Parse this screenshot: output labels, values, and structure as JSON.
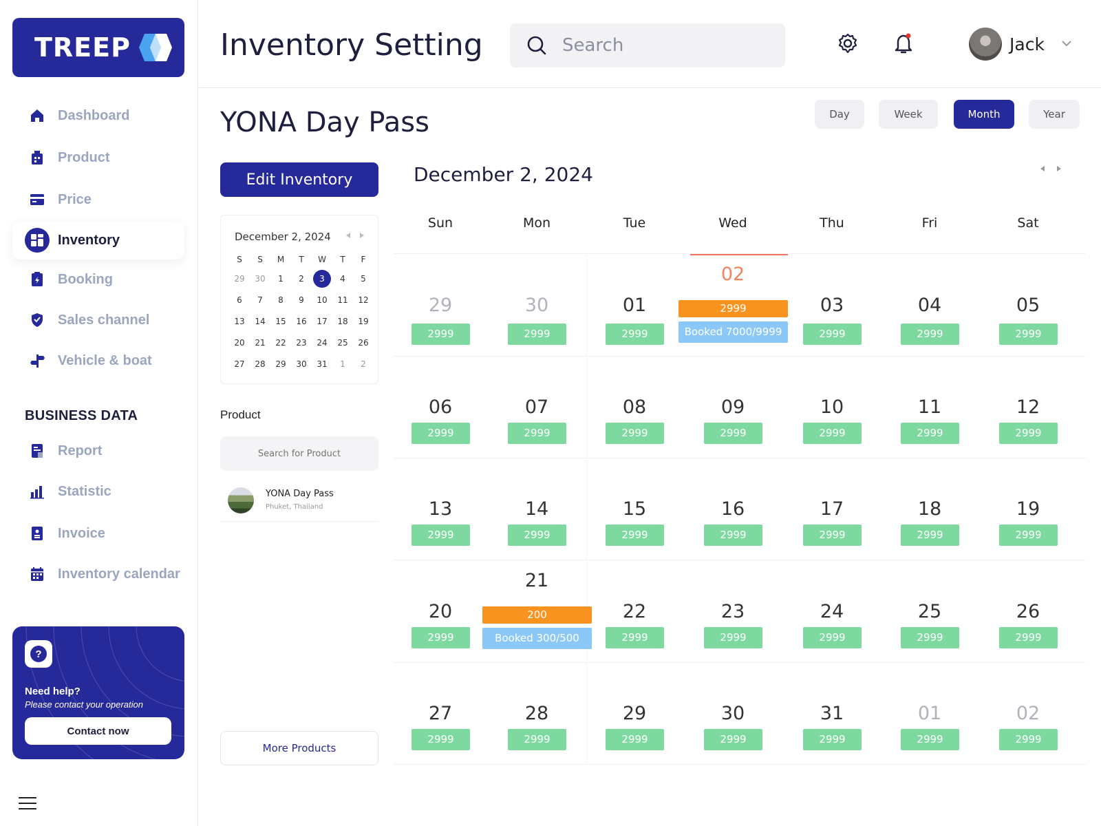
{
  "app": {
    "logo_text": "TREEP",
    "page_title": "Inventory Setting"
  },
  "search": {
    "placeholder": "Search"
  },
  "user": {
    "name": "Jack"
  },
  "sidebar": {
    "items": [
      {
        "label": "Dashboard",
        "icon": "home-icon"
      },
      {
        "label": "Product",
        "icon": "product-icon"
      },
      {
        "label": "Price",
        "icon": "card-icon"
      },
      {
        "label": "Inventory",
        "icon": "grid-icon",
        "active": true
      },
      {
        "label": "Booking",
        "icon": "clipboard-icon"
      },
      {
        "label": "Sales channel",
        "icon": "shield-icon"
      },
      {
        "label": "Vehicle & boat",
        "icon": "signpost-icon"
      }
    ],
    "section_title": "BUSINESS DATA",
    "business_items": [
      {
        "label": "Report",
        "icon": "report-icon"
      },
      {
        "label": "Statistic",
        "icon": "bar-chart-icon"
      },
      {
        "label": "Invoice",
        "icon": "invoice-icon"
      },
      {
        "label": "Inventory calendar",
        "icon": "calendar-icon"
      }
    ],
    "help": {
      "title": "Need help?",
      "subtitle": "Please contact your operation",
      "button": "Contact now"
    }
  },
  "product_title": "YONA Day Pass",
  "views": {
    "day": "Day",
    "week": "Week",
    "month": "Month",
    "year": "Year",
    "active": "Month"
  },
  "edit_button": "Edit Inventory",
  "mini_calendar": {
    "title": "December 2, 2024",
    "weekdays": [
      "S",
      "S",
      "M",
      "T",
      "W",
      "T",
      "F"
    ],
    "weeks": [
      [
        "29",
        "30",
        "1",
        "2",
        "3",
        "4",
        "5"
      ],
      [
        "6",
        "7",
        "8",
        "9",
        "10",
        "11",
        "12"
      ],
      [
        "13",
        "14",
        "15",
        "16",
        "17",
        "18",
        "19"
      ],
      [
        "20",
        "21",
        "22",
        "23",
        "24",
        "25",
        "26"
      ],
      [
        "27",
        "28",
        "29",
        "30",
        "31",
        "1",
        "2"
      ]
    ],
    "selected": "3"
  },
  "product_panel": {
    "label": "Product",
    "search_placeholder": "Search for Product",
    "items": [
      {
        "name": "YONA Day Pass",
        "location": "Phuket, Thailand"
      }
    ],
    "more_button": "More Products"
  },
  "calendar": {
    "title": "December 2, 2024",
    "weekdays": [
      "Sun",
      "Mon",
      "Tue",
      "Wed",
      "Thu",
      "Fri",
      "Sat"
    ],
    "weeks": [
      [
        {
          "day": "29",
          "muted": true,
          "value": "2999"
        },
        {
          "day": "30",
          "muted": true,
          "value": "2999"
        },
        {
          "day": "01",
          "value": "2999"
        },
        {
          "day": "02",
          "today": true,
          "special": "2999",
          "booked": "Booked 7000/9999"
        },
        {
          "day": "03",
          "value": "2999"
        },
        {
          "day": "04",
          "value": "2999"
        },
        {
          "day": "05",
          "value": "2999"
        }
      ],
      [
        {
          "day": "06",
          "value": "2999"
        },
        {
          "day": "07",
          "value": "2999"
        },
        {
          "day": "08",
          "value": "2999"
        },
        {
          "day": "09",
          "value": "2999"
        },
        {
          "day": "10",
          "value": "2999"
        },
        {
          "day": "11",
          "value": "2999"
        },
        {
          "day": "12",
          "value": "2999"
        }
      ],
      [
        {
          "day": "13",
          "value": "2999"
        },
        {
          "day": "14",
          "value": "2999"
        },
        {
          "day": "15",
          "value": "2999"
        },
        {
          "day": "16",
          "value": "2999"
        },
        {
          "day": "17",
          "value": "2999"
        },
        {
          "day": "18",
          "value": "2999"
        },
        {
          "day": "19",
          "value": "2999"
        }
      ],
      [
        {
          "day": "20",
          "value": "2999"
        },
        {
          "day": "21",
          "special": "200",
          "booked": "Booked 300/500"
        },
        {
          "day": "22",
          "value": "2999"
        },
        {
          "day": "23",
          "value": "2999"
        },
        {
          "day": "24",
          "value": "2999"
        },
        {
          "day": "25",
          "value": "2999"
        },
        {
          "day": "26",
          "value": "2999"
        }
      ],
      [
        {
          "day": "27",
          "value": "2999"
        },
        {
          "day": "28",
          "value": "2999"
        },
        {
          "day": "29",
          "value": "2999"
        },
        {
          "day": "30",
          "value": "2999"
        },
        {
          "day": "31",
          "value": "2999"
        },
        {
          "day": "01",
          "muted": true,
          "value": "2999"
        },
        {
          "day": "02",
          "muted": true,
          "value": "2999"
        }
      ]
    ]
  },
  "colors": {
    "brand": "#26299a",
    "available": "#7ed9a0",
    "special": "#f7931e",
    "booked": "#8cc8f7",
    "today": "#f4845f"
  }
}
